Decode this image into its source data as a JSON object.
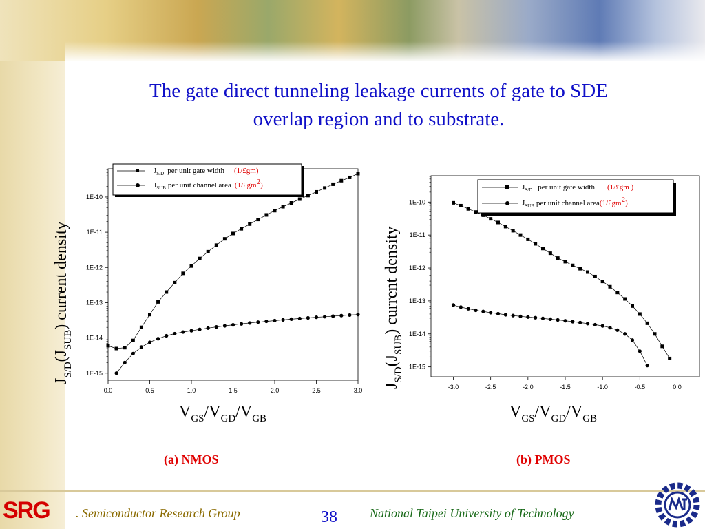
{
  "title_line1": "The gate direct tunneling leakage currents of gate to SDE",
  "title_line2": "overlap region and to substrate.",
  "captions": {
    "a": "(a) NMOS",
    "b": "(b) PMOS"
  },
  "footer": {
    "left_text": ". Semiconductor Research Group",
    "page_number": "38",
    "right_text": "National Taipei University of Technology",
    "logo_text": "SRG"
  },
  "chart_data": [
    {
      "type": "scatter",
      "subtitle": "(a) NMOS",
      "y_scale": "log",
      "xlim": [
        0.0,
        3.0
      ],
      "ylim_exp": [
        -15.2,
        -9.2
      ],
      "x_ticks": [
        "0.0",
        "0.5",
        "1.0",
        "1.5",
        "2.0",
        "2.5",
        "3.0"
      ],
      "y_ticks": [
        "1E-15",
        "1E-14",
        "1E-13",
        "1E-12",
        "1E-11",
        "1E-10"
      ],
      "xlabel": {
        "v1": "V",
        "s1": "GS",
        "v2": "/V",
        "s2": "GD",
        "v3": "/V",
        "s3": "GB"
      },
      "ylabel": {
        "j1": "J",
        "s1": "S/D",
        "j2": "(J",
        "s2": "SUB",
        "tail": ") current density"
      },
      "legend": {
        "placement": "top",
        "entries": [
          {
            "j": "J",
            "sub": "S/D",
            "text": "per unit gate width",
            "unit": "(1/£gm)",
            "sup": ""
          },
          {
            "j": "J",
            "sub": "SUB",
            "text": "per unit channel area",
            "unit": "(1/£gm",
            "sup": "2",
            "unit_tail": ")"
          }
        ]
      },
      "series": [
        {
          "name": "J_S/D per unit gate width",
          "marker": "square",
          "x": [
            0.0,
            0.1,
            0.2,
            0.3,
            0.4,
            0.5,
            0.6,
            0.7,
            0.8,
            0.9,
            1.0,
            1.1,
            1.2,
            1.3,
            1.4,
            1.5,
            1.6,
            1.7,
            1.8,
            1.9,
            2.0,
            2.1,
            2.2,
            2.3,
            2.4,
            2.5,
            2.6,
            2.7,
            2.8,
            2.9,
            3.0
          ],
          "y": [
            6e-15,
            5e-15,
            5.3e-15,
            8.5e-15,
            2e-14,
            4.6e-14,
            1.05e-13,
            2e-13,
            3.7e-13,
            6.8e-13,
            1.1e-12,
            1.8e-12,
            2.8e-12,
            4.3e-12,
            6.5e-12,
            9.2e-12,
            1.25e-11,
            1.7e-11,
            2.3e-11,
            3.1e-11,
            4.1e-11,
            5.3e-11,
            6.8e-11,
            8.7e-11,
            1.1e-10,
            1.4e-10,
            1.8e-10,
            2.3e-10,
            2.9e-10,
            3.6e-10,
            4.6e-10
          ]
        },
        {
          "name": "J_SUB per unit channel area",
          "marker": "circle",
          "x": [
            0.1,
            0.2,
            0.3,
            0.4,
            0.5,
            0.6,
            0.7,
            0.8,
            0.9,
            1.0,
            1.1,
            1.2,
            1.3,
            1.4,
            1.5,
            1.6,
            1.7,
            1.8,
            1.9,
            2.0,
            2.1,
            2.2,
            2.3,
            2.4,
            2.5,
            2.6,
            2.7,
            2.8,
            2.9,
            3.0
          ],
          "y": [
            1e-15,
            2e-15,
            3.6e-15,
            5.5e-15,
            7.5e-15,
            9.5e-15,
            1.15e-14,
            1.32e-14,
            1.47e-14,
            1.6e-14,
            1.75e-14,
            1.9e-14,
            2.05e-14,
            2.2e-14,
            2.35e-14,
            2.5e-14,
            2.65e-14,
            2.8e-14,
            2.95e-14,
            3.1e-14,
            3.25e-14,
            3.4e-14,
            3.55e-14,
            3.7e-14,
            3.85e-14,
            4e-14,
            4.15e-14,
            4.3e-14,
            4.45e-14,
            4.6e-14
          ]
        }
      ]
    },
    {
      "type": "scatter",
      "subtitle": "(b) PMOS",
      "y_scale": "log",
      "xlim": [
        -3.3,
        0.3
      ],
      "ylim_exp": [
        -15.3,
        -9.2
      ],
      "x_ticks": [
        "-3.0",
        "-2.5",
        "-2.0",
        "-1.5",
        "-1.0",
        "-0.5",
        "0.0"
      ],
      "y_ticks": [
        "1E-15",
        "1E-14",
        "1E-13",
        "1E-12",
        "1E-11",
        "1E-10"
      ],
      "xlabel": {
        "v1": "V",
        "s1": "GS",
        "v2": "/V",
        "s2": "GD",
        "v3": "/V",
        "s3": "GB"
      },
      "ylabel": {
        "j1": "J",
        "s1": "S/D",
        "j2": "(J",
        "s2": "SUB",
        "tail": ") current density"
      },
      "legend": {
        "placement": "top-right",
        "entries": [
          {
            "j": "J",
            "sub": "S/D",
            "text": "per unit gate width",
            "unit": "(1/£gm  )",
            "sup": ""
          },
          {
            "j": "J",
            "sub": "SUB",
            "text": "per unit channel area",
            "unit": "(1/£gm",
            "sup": "2",
            "unit_tail": ")"
          }
        ]
      },
      "series": [
        {
          "name": "J_S/D per unit gate width",
          "marker": "square",
          "x": [
            -3.0,
            -2.9,
            -2.8,
            -2.7,
            -2.6,
            -2.5,
            -2.4,
            -2.3,
            -2.2,
            -2.1,
            -2.0,
            -1.9,
            -1.8,
            -1.7,
            -1.6,
            -1.5,
            -1.4,
            -1.3,
            -1.2,
            -1.1,
            -1.0,
            -0.9,
            -0.8,
            -0.7,
            -0.6,
            -0.5,
            -0.4,
            -0.3,
            -0.2,
            -0.1
          ],
          "y": [
            9.5e-11,
            7.8e-11,
            6.2e-11,
            5e-11,
            4e-11,
            3.1e-11,
            2.4e-11,
            1.8e-11,
            1.35e-11,
            1e-11,
            7.4e-12,
            5.4e-12,
            3.9e-12,
            2.8e-12,
            2e-12,
            1.55e-12,
            1.2e-12,
            9.5e-13,
            7.5e-13,
            5.5e-13,
            3.9e-13,
            2.7e-13,
            1.8e-13,
            1.15e-13,
            7e-14,
            4e-14,
            2.1e-14,
            1e-14,
            4.2e-15,
            1.8e-15
          ]
        },
        {
          "name": "J_SUB per unit channel area",
          "marker": "circle",
          "x": [
            -3.0,
            -2.9,
            -2.8,
            -2.7,
            -2.6,
            -2.5,
            -2.4,
            -2.3,
            -2.2,
            -2.1,
            -2.0,
            -1.9,
            -1.8,
            -1.7,
            -1.6,
            -1.5,
            -1.4,
            -1.3,
            -1.2,
            -1.1,
            -1.0,
            -0.9,
            -0.8,
            -0.7,
            -0.6,
            -0.5,
            -0.4
          ],
          "y": [
            7.5e-14,
            6.5e-14,
            5.8e-14,
            5.2e-14,
            4.8e-14,
            4.4e-14,
            4.1e-14,
            3.8e-14,
            3.6e-14,
            3.4e-14,
            3.25e-14,
            3.1e-14,
            2.95e-14,
            2.8e-14,
            2.65e-14,
            2.5e-14,
            2.35e-14,
            2.2e-14,
            2.05e-14,
            1.9e-14,
            1.75e-14,
            1.55e-14,
            1.3e-14,
            1e-14,
            6.5e-15,
            3e-15,
            1.1e-15
          ]
        }
      ]
    }
  ]
}
